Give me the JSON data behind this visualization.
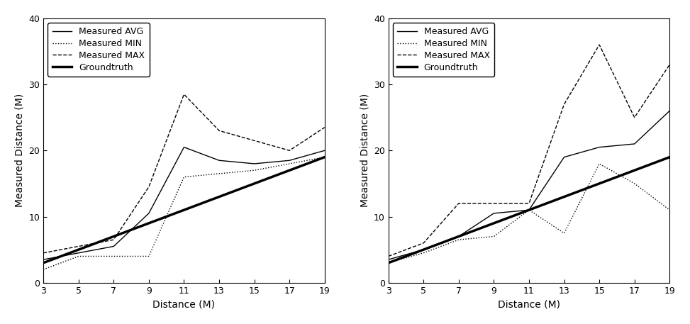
{
  "left": {
    "x": [
      3,
      5,
      7,
      9,
      11,
      13,
      15,
      17,
      19
    ],
    "avg": [
      3.5,
      4.5,
      5.5,
      10.5,
      20.5,
      18.5,
      18.0,
      18.5,
      20.0
    ],
    "min": [
      2.0,
      4.0,
      4.0,
      4.0,
      16.0,
      16.5,
      17.0,
      18.0,
      19.0
    ],
    "max": [
      4.5,
      5.5,
      6.5,
      14.5,
      28.5,
      23.0,
      21.5,
      20.0,
      23.5
    ],
    "groundtruth": [
      3,
      5,
      7,
      9,
      11,
      13,
      15,
      17,
      19
    ]
  },
  "right": {
    "x": [
      3,
      5,
      7,
      9,
      11,
      13,
      15,
      17,
      19
    ],
    "avg": [
      3.5,
      5.0,
      7.0,
      10.5,
      11.0,
      19.0,
      20.5,
      21.0,
      26.0
    ],
    "min": [
      3.0,
      4.5,
      6.5,
      7.0,
      11.0,
      7.5,
      18.0,
      15.0,
      11.0
    ],
    "max": [
      4.0,
      6.0,
      12.0,
      12.0,
      12.0,
      27.0,
      36.0,
      25.0,
      33.0
    ],
    "groundtruth": [
      3,
      5,
      7,
      9,
      11,
      13,
      15,
      17,
      19
    ]
  },
  "ylabel": "Measured Distance (M)",
  "xlabel": "Distance (M)",
  "ylim": [
    0,
    40
  ],
  "xlim": [
    3,
    19
  ],
  "xticks": [
    3,
    5,
    7,
    9,
    11,
    13,
    15,
    17,
    19
  ],
  "yticks": [
    0,
    10,
    20,
    30,
    40
  ],
  "legend_labels": [
    "Measured AVG",
    "Measured MIN",
    "Measured MAX",
    "Groundtruth"
  ],
  "line_color": "#000000",
  "groundtruth_color": "#000000",
  "avg_lw": 1.0,
  "min_lw": 1.0,
  "max_lw": 1.0,
  "gt_lw": 2.5,
  "fontsize_label": 10,
  "fontsize_tick": 9,
  "fontsize_legend": 9
}
